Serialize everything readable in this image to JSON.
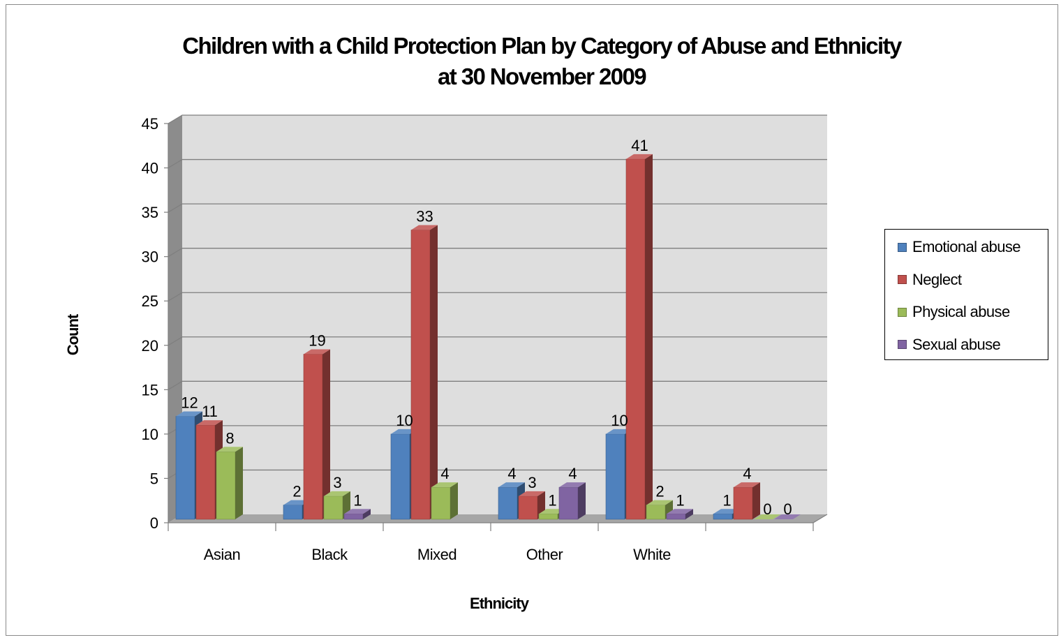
{
  "chart_data": {
    "type": "bar",
    "title": "Children with a Child Protection Plan by Category of Abuse and Ethnicity",
    "subtitle": "at 30 November 2009",
    "xlabel": "Ethnicity",
    "ylabel": "Count",
    "categories": [
      "Asian",
      "Black",
      "Mixed",
      "Other",
      "White",
      ""
    ],
    "ylim": [
      0,
      45
    ],
    "yticks": [
      "0",
      "5",
      "10",
      "15",
      "20",
      "25",
      "30",
      "35",
      "40",
      "45"
    ],
    "grid": true,
    "legend_position": "right",
    "series": [
      {
        "name": "Emotional abuse",
        "color": "#4f81bd",
        "values": [
          12,
          2,
          10,
          4,
          10,
          1
        ]
      },
      {
        "name": "Neglect",
        "color": "#c0504d",
        "values": [
          11,
          19,
          33,
          3,
          41,
          4
        ]
      },
      {
        "name": "Physical abuse",
        "color": "#9bbb59",
        "values": [
          8,
          3,
          4,
          1,
          2,
          0
        ]
      },
      {
        "name": "Sexual abuse",
        "color": "#8064a2",
        "values": [
          null,
          1,
          null,
          4,
          1,
          0
        ]
      }
    ],
    "data_labels": [
      [
        "12",
        "2",
        "10",
        "4",
        "10",
        "1"
      ],
      [
        "11",
        "19",
        "33",
        "3",
        "41",
        "4"
      ],
      [
        "8",
        "3",
        "4",
        "1",
        "2",
        "0"
      ],
      [
        "",
        "1",
        "",
        "4",
        "1",
        "0"
      ]
    ]
  }
}
